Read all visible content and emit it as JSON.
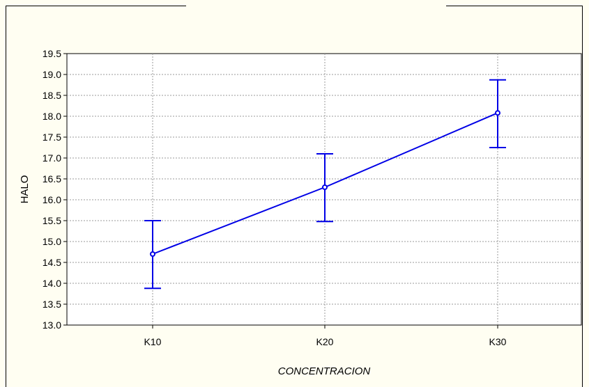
{
  "chart_data": {
    "type": "line",
    "title": "",
    "xlabel": "CONCENTRACION",
    "ylabel": "HALO",
    "categories": [
      "K10",
      "K20",
      "K30"
    ],
    "series": [
      {
        "values": [
          14.7,
          16.3,
          18.08
        ],
        "lower": [
          13.88,
          15.48,
          17.25
        ],
        "upper": [
          15.5,
          17.1,
          18.87
        ]
      }
    ],
    "ylim": [
      13.0,
      19.5
    ],
    "yticks": [
      "13.0",
      "13.5",
      "14.0",
      "14.5",
      "15.0",
      "15.5",
      "16.0",
      "16.5",
      "17.0",
      "17.5",
      "18.0",
      "18.5",
      "19.0",
      "19.5"
    ],
    "grid": true,
    "colors": {
      "series": "#0000e6",
      "background": "#fffef2",
      "plot_area": "#ffffff"
    }
  }
}
